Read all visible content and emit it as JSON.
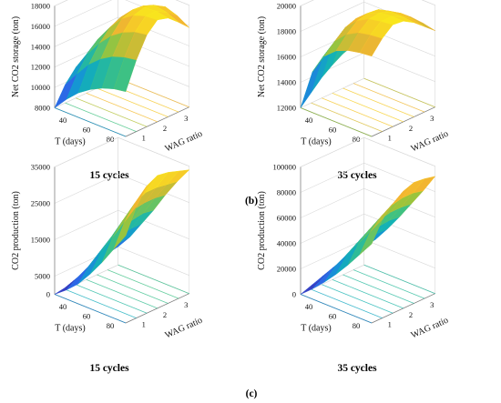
{
  "figure": {
    "panel_labels": [
      "(b)",
      "(c)"
    ]
  },
  "colors": {
    "colormap": [
      "#3e26a8",
      "#2f63e8",
      "#1595d4",
      "#14b2b5",
      "#41c280",
      "#9ec43a",
      "#f3b531",
      "#f9e91c"
    ]
  },
  "chart_data": [
    {
      "type": "surface",
      "panel": "(b)",
      "caption": "15 cycles",
      "xlabel": "T (days)",
      "ylabel": "WAG ratio",
      "zlabel": "Net CO2 storage (ton)",
      "x_ticks": [
        "40",
        "60",
        "80"
      ],
      "y_ticks": [
        "1",
        "2",
        "3"
      ],
      "z_ticks": [
        "8000",
        "10000",
        "12000",
        "14000",
        "16000",
        "18000"
      ],
      "x": [
        30,
        40,
        50,
        60,
        70,
        80,
        90
      ],
      "y": [
        0.5,
        1,
        1.5,
        2,
        2.5,
        3,
        3.5
      ],
      "zlim": [
        8000,
        18000
      ],
      "z": [
        [
          8000,
          9300,
          10400,
          11200,
          11800,
          12200,
          12400
        ],
        [
          9800,
          11300,
          12700,
          13700,
          14400,
          14800,
          15000
        ],
        [
          11000,
          12800,
          14300,
          15500,
          16300,
          16800,
          17000
        ],
        [
          11800,
          13800,
          15400,
          16700,
          17500,
          17900,
          18000
        ],
        [
          12400,
          14300,
          15900,
          17100,
          17800,
          17900,
          17700
        ],
        [
          12800,
          14600,
          16000,
          17000,
          17500,
          17300,
          16800
        ],
        [
          13000,
          14600,
          15800,
          16600,
          16900,
          16500,
          15800
        ]
      ]
    },
    {
      "type": "surface",
      "panel": "(b)",
      "caption": "35 cycles",
      "xlabel": "T (days)",
      "ylabel": "WAG ratio",
      "zlabel": "Net CO2 storage (ton)",
      "x_ticks": [
        "40",
        "60",
        "80"
      ],
      "y_ticks": [
        "1",
        "2",
        "3"
      ],
      "z_ticks": [
        "12000",
        "14000",
        "16000",
        "18000",
        "20000"
      ],
      "x": [
        30,
        40,
        50,
        60,
        70,
        80,
        90
      ],
      "y": [
        0.5,
        1,
        1.5,
        2,
        2.5,
        3,
        3.5
      ],
      "zlim": [
        12000,
        20000
      ],
      "z": [
        [
          12000,
          15200,
          16800,
          17600,
          18000,
          18200,
          18300
        ],
        [
          12800,
          16000,
          17600,
          18500,
          19000,
          19200,
          19300
        ],
        [
          13600,
          16700,
          18300,
          19200,
          19700,
          19900,
          20000
        ],
        [
          14200,
          17100,
          18600,
          19400,
          19800,
          19900,
          19900
        ],
        [
          14700,
          17300,
          18600,
          19300,
          19500,
          19500,
          19400
        ],
        [
          15000,
          17200,
          18300,
          18800,
          19000,
          18900,
          18700
        ],
        [
          15200,
          17000,
          17800,
          18200,
          18300,
          18200,
          18000
        ]
      ]
    },
    {
      "type": "surface",
      "panel": "(c)",
      "caption": "15 cycles",
      "xlabel": "T (days)",
      "ylabel": "WAG ratio",
      "zlabel": "CO2 production (ton)",
      "x_ticks": [
        "40",
        "60",
        "80"
      ],
      "y_ticks": [
        "1",
        "2",
        "3"
      ],
      "z_ticks": [
        "0",
        "5000",
        "15000",
        "25000",
        "35000"
      ],
      "x": [
        30,
        40,
        50,
        60,
        70,
        80,
        90
      ],
      "y": [
        0.5,
        1,
        1.5,
        2,
        2.5,
        3,
        3.5
      ],
      "zlim": [
        0,
        35000
      ],
      "z": [
        [
          0,
          2500,
          5500,
          9500,
          14000,
          19000,
          24000
        ],
        [
          500,
          4500,
          9000,
          14000,
          19500,
          25000,
          30500
        ],
        [
          1500,
          6000,
          11500,
          17000,
          23000,
          29000,
          35000
        ],
        [
          2500,
          7200,
          12500,
          18500,
          24500,
          30500,
          36500
        ],
        [
          3500,
          8000,
          13500,
          19000,
          25000,
          30500,
          36000
        ],
        [
          4500,
          8700,
          14000,
          19500,
          25000,
          30000,
          35000
        ],
        [
          5000,
          9000,
          14000,
          19000,
          24500,
          29500,
          34000
        ]
      ]
    },
    {
      "type": "surface",
      "panel": "(c)",
      "caption": "35 cycles",
      "xlabel": "T (days)",
      "ylabel": "WAG ratio",
      "zlabel": "CO2 production (ton)",
      "x_ticks": [
        "40",
        "60",
        "80"
      ],
      "y_ticks": [
        "1",
        "2",
        "3"
      ],
      "z_ticks": [
        "0",
        "20000",
        "40000",
        "60000",
        "80000",
        "100000"
      ],
      "x": [
        30,
        40,
        50,
        60,
        70,
        80,
        90
      ],
      "y": [
        0.5,
        1,
        1.5,
        2,
        2.5,
        3,
        3.5
      ],
      "zlim": [
        0,
        100000
      ],
      "z": [
        [
          0,
          8000,
          17000,
          27000,
          38000,
          50000,
          62000
        ],
        [
          3000,
          13000,
          25000,
          38000,
          51000,
          64000,
          77000
        ],
        [
          6000,
          17000,
          30000,
          44000,
          58000,
          72000,
          86000
        ],
        [
          9000,
          20000,
          33000,
          47000,
          62000,
          77000,
          92000
        ],
        [
          11000,
          22000,
          35000,
          49000,
          64000,
          79000,
          95000
        ],
        [
          13000,
          23000,
          36000,
          50000,
          64000,
          79000,
          94000
        ],
        [
          14000,
          24000,
          36000,
          49000,
          63000,
          77000,
          92000
        ]
      ]
    }
  ]
}
